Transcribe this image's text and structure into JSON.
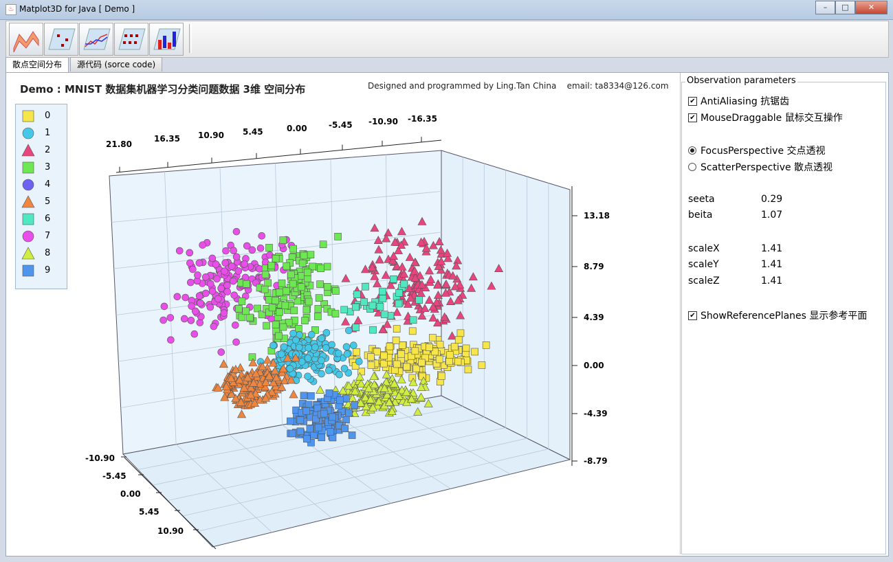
{
  "window": {
    "title": "Matplot3D for Java  [ Demo ]",
    "buttons": [
      "–",
      "□",
      "✕"
    ]
  },
  "toolbar": {
    "buttons": [
      "surface-plot-button",
      "scatter-plot-button",
      "line-plot-button",
      "dots-plot-button",
      "bar-plot-button"
    ]
  },
  "tabs": [
    {
      "label": "散点空间分布",
      "active": true
    },
    {
      "label": "源代码   (sorce code)",
      "active": false
    }
  ],
  "plot": {
    "title": "Demo : MNIST 数据集机器学习分类问题数据 3维 空间分布",
    "credit": "Designed and programmed by Ling.Tan China    email: ta8334@126.com"
  },
  "chart_data": {
    "type": "scatter",
    "title": "Demo : MNIST 数据集机器学习分类问题数据 3维 空间分布",
    "top_axis_ticks": [
      "21.80",
      "16.35",
      "10.90",
      "5.45",
      "0.00",
      "-5.45",
      "-10.90",
      "-16.35"
    ],
    "right_axis_ticks": [
      "13.18",
      "8.79",
      "4.39",
      "0.00",
      "-4.39",
      "-8.79"
    ],
    "front_axis_ticks": [
      "-10.90",
      "-5.45",
      "0.00",
      "5.45",
      "10.90"
    ],
    "legend": [
      {
        "label": "0",
        "marker": "square",
        "color": "#f7e64a"
      },
      {
        "label": "1",
        "marker": "circle",
        "color": "#45c8e8"
      },
      {
        "label": "2",
        "marker": "triangle",
        "color": "#e8457f"
      },
      {
        "label": "3",
        "marker": "square",
        "color": "#6ee852"
      },
      {
        "label": "4",
        "marker": "circle",
        "color": "#6b62f2"
      },
      {
        "label": "5",
        "marker": "triangle",
        "color": "#ee8640"
      },
      {
        "label": "6",
        "marker": "square",
        "color": "#4fe8c0"
      },
      {
        "label": "7",
        "marker": "circle",
        "color": "#e84fe8"
      },
      {
        "label": "8",
        "marker": "triangle",
        "color": "#cfee40"
      },
      {
        "label": "9",
        "marker": "square",
        "color": "#4f95ee"
      }
    ],
    "clusters": [
      {
        "label": "7",
        "x": [
          -14,
          -3
        ],
        "y": [
          -8,
          8
        ],
        "z": [
          0,
          11
        ]
      },
      {
        "label": "3",
        "x": [
          -7,
          3
        ],
        "y": [
          -4,
          8
        ],
        "z": [
          -1,
          11
        ]
      },
      {
        "label": "2",
        "x": [
          2,
          17
        ],
        "y": [
          -2,
          12
        ],
        "z": [
          1,
          13
        ]
      },
      {
        "label": "0",
        "x": [
          2,
          15
        ],
        "y": [
          -2,
          8
        ],
        "z": [
          -2,
          2
        ]
      },
      {
        "label": "1",
        "x": [
          -6,
          3
        ],
        "y": [
          -3,
          5
        ],
        "z": [
          -3,
          2
        ]
      },
      {
        "label": "8",
        "x": [
          0,
          11
        ],
        "y": [
          -2,
          8
        ],
        "z": [
          -5,
          -1
        ]
      },
      {
        "label": "9",
        "x": [
          -3,
          3
        ],
        "y": [
          -2,
          5
        ],
        "z": [
          -8,
          -3
        ]
      },
      {
        "label": "5",
        "x": [
          -11,
          -3
        ],
        "y": [
          -6,
          3
        ],
        "z": [
          -6,
          -1
        ]
      },
      {
        "label": "6",
        "x": [
          3,
          12
        ],
        "y": [
          4,
          12
        ],
        "z": [
          3,
          9
        ]
      }
    ]
  },
  "params": {
    "title": "Observation parameters",
    "antialiasing": {
      "label": "AntiAliasing  抗锯齿",
      "checked": "✔"
    },
    "mousedraggable": {
      "label": "MouseDraggable  鼠标交互操作",
      "checked": "✔"
    },
    "focus": {
      "label": "FocusPerspective  交点透视",
      "selected": true
    },
    "scatter": {
      "label": "ScatterPerspective  散点透视",
      "selected": false
    },
    "seeta": {
      "label": "seeta",
      "value": "0.29"
    },
    "beita": {
      "label": "beita",
      "value": "1.07"
    },
    "scaleX": {
      "label": "scaleX",
      "value": "1.41"
    },
    "scaleY": {
      "label": "scaleY",
      "value": "1.41"
    },
    "scaleZ": {
      "label": "scaleZ",
      "value": "1.41"
    },
    "refplanes": {
      "label": "ShowReferencePlanes  显示参考平面",
      "checked": "✔"
    }
  }
}
